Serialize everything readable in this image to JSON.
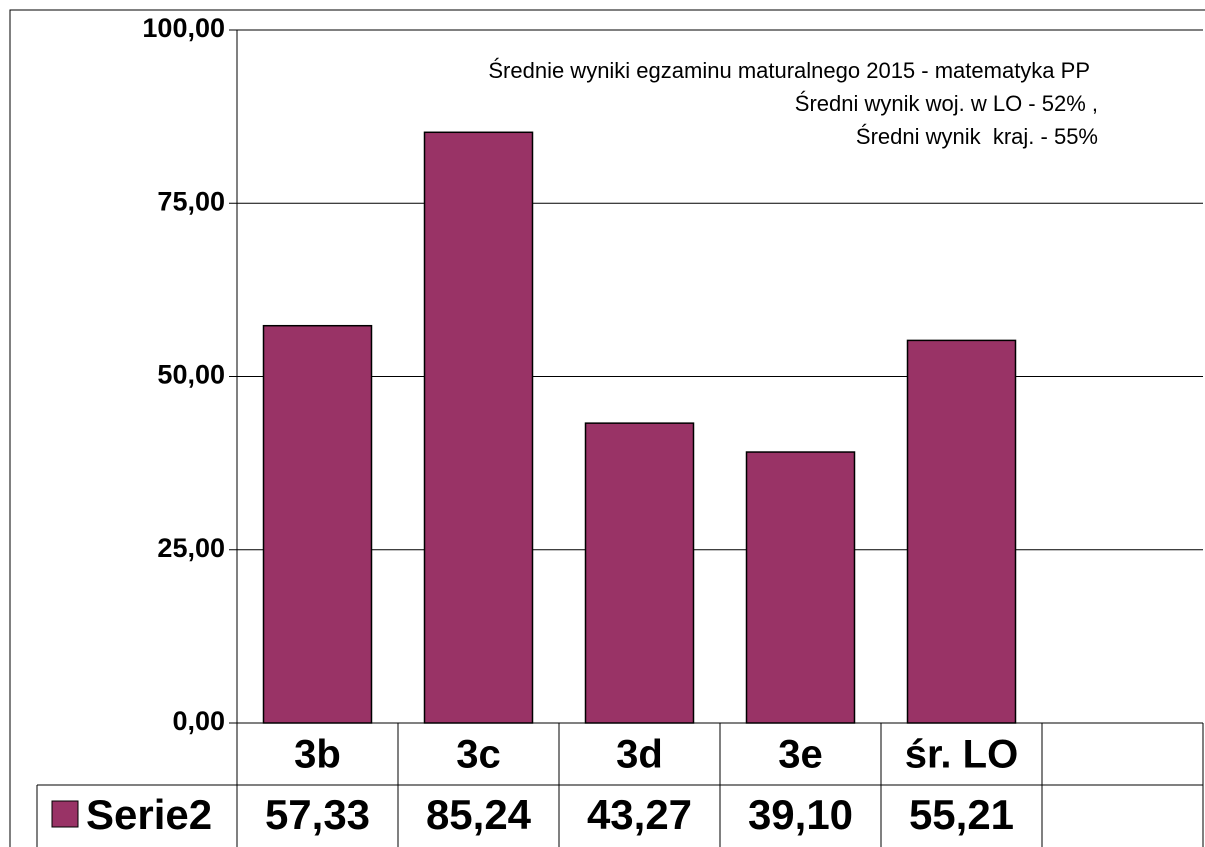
{
  "chart_data": {
    "type": "bar",
    "title": "Średnie wyniki egzaminu maturalnego 2015 - matematyka PP",
    "subtitle": [
      "Średni wynik woj. w LO - 52% ,",
      "Średni wynik  kraj. - 55%"
    ],
    "categories": [
      "3b",
      "3c",
      "3d",
      "3e",
      "śr. LO",
      null
    ],
    "series": [
      {
        "name": "Serie2",
        "color": "#993366",
        "values": [
          57.33,
          85.24,
          43.27,
          39.1,
          55.21,
          null
        ],
        "value_labels": [
          "57,33",
          "85,24",
          "43,27",
          "39,10",
          "55,21",
          null
        ]
      }
    ],
    "ylim": [
      0,
      100
    ],
    "yticks": [
      {
        "value": 0,
        "label": "0,00"
      },
      {
        "value": 25,
        "label": "25,00"
      },
      {
        "value": 50,
        "label": "50,00"
      },
      {
        "value": 75,
        "label": "75,00"
      },
      {
        "value": 100,
        "label": "100,00"
      }
    ],
    "grid": true,
    "data_table": true
  }
}
